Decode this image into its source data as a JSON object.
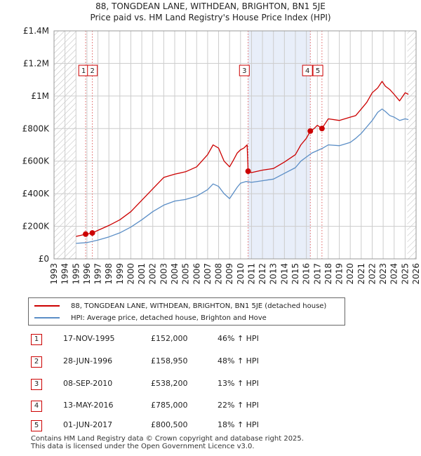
{
  "title_line1": "88, TONGDEAN LANE, WITHDEAN, BRIGHTON, BN1 5JE",
  "title_line2": "Price paid vs. HM Land Registry's House Price Index (HPI)",
  "colors": {
    "property": "#cc0000",
    "hpi": "#5b8ec6",
    "shade": "#e8eef9",
    "grid": "#cccccc",
    "vline": "#e06060"
  },
  "legend": {
    "property": "88, TONGDEAN LANE, WITHDEAN, BRIGHTON, BN1 5JE (detached house)",
    "hpi": "HPI: Average price, detached house, Brighton and Hove"
  },
  "chart_data": {
    "type": "line",
    "title": "Price paid vs. HM Land Registry's House Price Index (HPI)",
    "xlim": [
      1993,
      2026
    ],
    "ylim": [
      0,
      1400000
    ],
    "yticks": [
      0,
      200000,
      400000,
      600000,
      800000,
      1000000,
      1200000,
      1400000
    ],
    "yticklabels": [
      "£0",
      "£200K",
      "£400K",
      "£600K",
      "£800K",
      "£1M",
      "£1.2M",
      "£1.4M"
    ],
    "xticks": [
      1993,
      1994,
      1995,
      1996,
      1997,
      1998,
      1999,
      2000,
      2001,
      2002,
      2003,
      2004,
      2005,
      2006,
      2007,
      2008,
      2009,
      2010,
      2011,
      2012,
      2013,
      2014,
      2015,
      2016,
      2017,
      2018,
      2019,
      2020,
      2021,
      2022,
      2023,
      2024,
      2025,
      2026
    ],
    "hatched_ranges": [
      [
        1993,
        1995.0
      ],
      [
        2025.2,
        2026
      ]
    ],
    "shaded_ranges": [
      [
        2010.69,
        2016.36
      ]
    ],
    "series": [
      {
        "name": "88, TONGDEAN LANE, WITHDEAN, BRIGHTON, BN1 5JE (detached house)",
        "x": [
          1995.0,
          1995.5,
          1995.88,
          1996.2,
          1996.49,
          1997.0,
          1998.0,
          1999.0,
          2000.0,
          2001.0,
          2002.0,
          2003.0,
          2004.0,
          2005.0,
          2006.0,
          2007.0,
          2007.5,
          2008.0,
          2008.5,
          2009.0,
          2009.3,
          2009.7,
          2010.0,
          2010.3,
          2010.6,
          2010.69,
          2011.0,
          2012.0,
          2013.0,
          2014.0,
          2015.0,
          2015.5,
          2016.0,
          2016.36,
          2016.7,
          2017.0,
          2017.42,
          2018.0,
          2019.0,
          2020.0,
          2020.5,
          2021.0,
          2021.5,
          2022.0,
          2022.5,
          2022.9,
          2023.2,
          2023.6,
          2024.0,
          2024.5,
          2025.0,
          2025.3
        ],
        "values": [
          138000,
          145000,
          152000,
          155000,
          158950,
          175000,
          205000,
          240000,
          290000,
          360000,
          430000,
          500000,
          520000,
          535000,
          565000,
          640000,
          700000,
          680000,
          600000,
          565000,
          600000,
          650000,
          670000,
          680000,
          700000,
          538200,
          530000,
          545000,
          555000,
          595000,
          640000,
          700000,
          740000,
          785000,
          800000,
          820000,
          800500,
          860000,
          850000,
          870000,
          880000,
          920000,
          960000,
          1020000,
          1050000,
          1090000,
          1060000,
          1040000,
          1010000,
          970000,
          1020000,
          1010000
        ]
      },
      {
        "name": "HPI: Average price, detached house, Brighton and Hove",
        "x": [
          1995.0,
          1996.0,
          1997.0,
          1998.0,
          1999.0,
          2000.0,
          2001.0,
          2002.0,
          2003.0,
          2004.0,
          2005.0,
          2006.0,
          2007.0,
          2007.5,
          2008.0,
          2008.5,
          2009.0,
          2009.3,
          2009.7,
          2010.0,
          2010.5,
          2011.0,
          2012.0,
          2013.0,
          2014.0,
          2015.0,
          2015.5,
          2016.0,
          2016.5,
          2017.0,
          2017.5,
          2018.0,
          2019.0,
          2020.0,
          2020.5,
          2021.0,
          2021.5,
          2022.0,
          2022.5,
          2022.9,
          2023.2,
          2023.6,
          2024.0,
          2024.5,
          2025.0,
          2025.3
        ],
        "values": [
          95000,
          100000,
          115000,
          135000,
          160000,
          195000,
          240000,
          290000,
          330000,
          355000,
          365000,
          385000,
          425000,
          460000,
          445000,
          400000,
          370000,
          400000,
          440000,
          465000,
          475000,
          470000,
          480000,
          490000,
          525000,
          560000,
          600000,
          625000,
          650000,
          665000,
          680000,
          700000,
          695000,
          715000,
          740000,
          770000,
          810000,
          850000,
          900000,
          920000,
          905000,
          880000,
          870000,
          850000,
          860000,
          855000
        ]
      }
    ],
    "sale_points": [
      {
        "label": "1",
        "x": 1995.88,
        "value": 152000
      },
      {
        "label": "2",
        "x": 1996.49,
        "value": 158950
      },
      {
        "label": "3",
        "x": 2010.69,
        "value": 538200
      },
      {
        "label": "4",
        "x": 2016.36,
        "value": 785000
      },
      {
        "label": "5",
        "x": 2017.42,
        "value": 800500
      }
    ]
  },
  "sales": [
    {
      "num": "1",
      "date": "17-NOV-1995",
      "price": "£152,000",
      "hpi": "46% ↑ HPI"
    },
    {
      "num": "2",
      "date": "28-JUN-1996",
      "price": "£158,950",
      "hpi": "48% ↑ HPI"
    },
    {
      "num": "3",
      "date": "08-SEP-2010",
      "price": "£538,200",
      "hpi": "13% ↑ HPI"
    },
    {
      "num": "4",
      "date": "13-MAY-2016",
      "price": "£785,000",
      "hpi": "22% ↑ HPI"
    },
    {
      "num": "5",
      "date": "01-JUN-2017",
      "price": "£800,500",
      "hpi": "18% ↑ HPI"
    }
  ],
  "footer_line1": "Contains HM Land Registry data © Crown copyright and database right 2025.",
  "footer_line2": "This data is licensed under the Open Government Licence v3.0."
}
